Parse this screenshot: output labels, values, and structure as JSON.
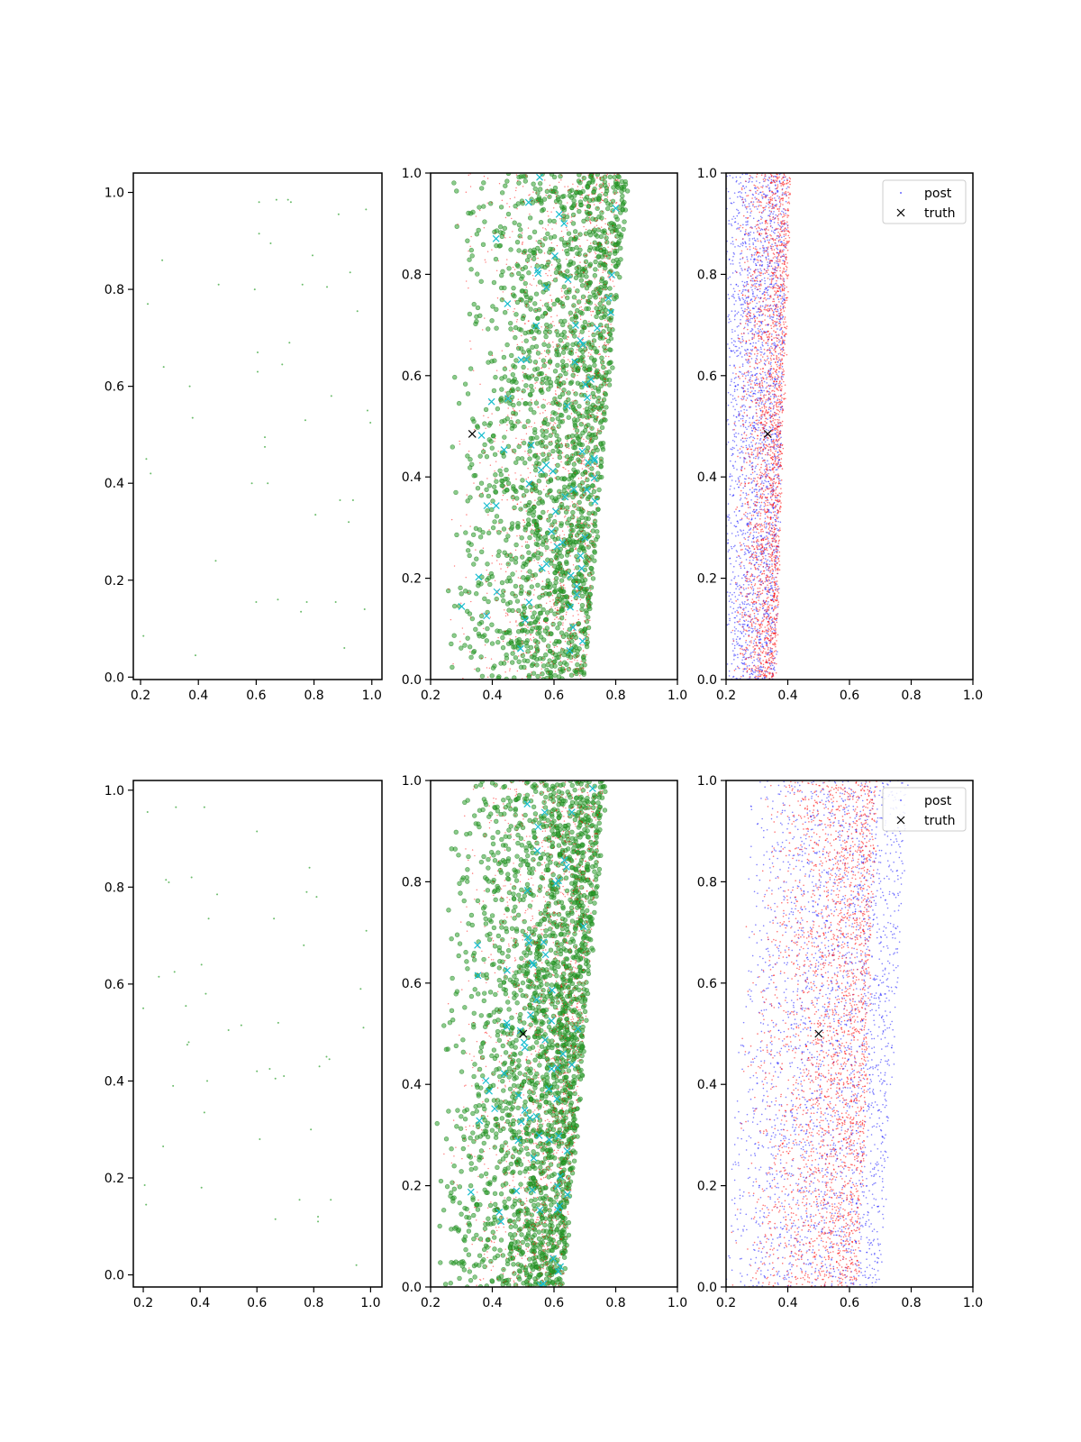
{
  "colors": {
    "prior": "#2ca02c",
    "post_red": "#ff0000",
    "post_blue": "#0000ff",
    "cyan": "#17becf",
    "truth": "#000000",
    "axes": "#000000"
  },
  "legend": {
    "post": "post",
    "truth": "truth"
  },
  "chart_data": [
    {
      "type": "scatter",
      "row": 0,
      "col": 0,
      "xlim": [
        0.175,
        1.035
      ],
      "ylim": [
        -0.005,
        1.04
      ],
      "xticks": [
        "0.2",
        "0.4",
        "0.6",
        "0.8",
        "1.0"
      ],
      "yticks": [
        "0.0",
        "0.2",
        "0.4",
        "0.6",
        "0.8",
        "1.0"
      ],
      "series": [
        {
          "role": "prior",
          "marker": "dot",
          "points": [
            [
              0.21,
              0.085
            ],
            [
              0.22,
              0.45
            ],
            [
              0.225,
              0.77
            ],
            [
              0.235,
              0.42
            ],
            [
              0.275,
              0.86
            ],
            [
              0.28,
              0.64
            ],
            [
              0.37,
              0.6
            ],
            [
              0.38,
              0.535
            ],
            [
              0.39,
              0.045
            ],
            [
              0.46,
              0.24
            ],
            [
              0.47,
              0.81
            ],
            [
              0.585,
              0.4
            ],
            [
              0.595,
              0.8
            ],
            [
              0.6,
              0.155
            ],
            [
              0.605,
              0.67
            ],
            [
              0.605,
              0.63
            ],
            [
              0.61,
              0.98
            ],
            [
              0.61,
              0.915
            ],
            [
              0.63,
              0.495
            ],
            [
              0.63,
              0.475
            ],
            [
              0.64,
              0.4
            ],
            [
              0.65,
              0.895
            ],
            [
              0.67,
              0.985
            ],
            [
              0.675,
              0.16
            ],
            [
              0.69,
              0.645
            ],
            [
              0.71,
              0.985
            ],
            [
              0.715,
              0.69
            ],
            [
              0.72,
              0.98
            ],
            [
              0.755,
              0.135
            ],
            [
              0.76,
              0.81
            ],
            [
              0.77,
              0.53
            ],
            [
              0.775,
              0.155
            ],
            [
              0.795,
              0.87
            ],
            [
              0.805,
              0.335
            ],
            [
              0.845,
              0.805
            ],
            [
              0.86,
              0.58
            ],
            [
              0.875,
              0.155
            ],
            [
              0.885,
              0.955
            ],
            [
              0.89,
              0.365
            ],
            [
              0.905,
              0.06
            ],
            [
              0.92,
              0.32
            ],
            [
              0.925,
              0.835
            ],
            [
              0.935,
              0.365
            ],
            [
              0.95,
              0.755
            ],
            [
              0.975,
              0.14
            ],
            [
              0.98,
              0.965
            ],
            [
              0.985,
              0.55
            ],
            [
              0.995,
              0.525
            ]
          ]
        }
      ]
    },
    {
      "type": "scatter",
      "row": 0,
      "col": 1,
      "xlim": [
        0.2,
        1.0
      ],
      "ylim": [
        0.0,
        1.0
      ],
      "xticks": [
        "0.2",
        "0.4",
        "0.6",
        "0.8",
        "1.0"
      ],
      "yticks": [
        "0.0",
        "0.2",
        "0.4",
        "0.6",
        "0.8",
        "1.0"
      ],
      "series": [
        {
          "role": "samples-green",
          "marker": "circle",
          "count": 1800,
          "band": {
            "left_at_y0": 0.22,
            "left_at_y1": 0.26,
            "right_at_y0": 0.7,
            "right_at_y1": 0.84,
            "skew": 2.2
          }
        },
        {
          "role": "samples-red",
          "marker": "dot",
          "count": 1500,
          "band": {
            "left_at_y0": 0.2,
            "left_at_y1": 0.25,
            "right_at_y0": 0.7,
            "right_at_y1": 0.82,
            "skew": 2.6
          }
        },
        {
          "role": "samples-cyan",
          "marker": "x",
          "count": 70,
          "band": {
            "left_at_y0": 0.26,
            "left_at_y1": 0.3,
            "right_at_y0": 0.7,
            "right_at_y1": 0.82,
            "skew": 2.4
          }
        },
        {
          "role": "truth",
          "marker": "x",
          "points": [
            [
              0.335,
              0.485
            ]
          ]
        }
      ]
    },
    {
      "type": "scatter",
      "row": 0,
      "col": 2,
      "xlim": [
        0.2,
        1.0
      ],
      "ylim": [
        0.0,
        1.0
      ],
      "xticks": [
        "0.2",
        "0.4",
        "0.6",
        "0.8",
        "1.0"
      ],
      "yticks": [
        "0.0",
        "0.2",
        "0.4",
        "0.6",
        "0.8",
        "1.0"
      ],
      "legend": "top-right",
      "series": [
        {
          "role": "post-blue",
          "marker": "dot",
          "count": 2200,
          "band": {
            "left_at_y0": 0.2,
            "left_at_y1": 0.2,
            "right_at_y0": 0.36,
            "right_at_y1": 0.4,
            "skew": 1.3
          }
        },
        {
          "role": "post-red",
          "marker": "dot",
          "count": 2200,
          "band": {
            "left_at_y0": 0.22,
            "left_at_y1": 0.22,
            "right_at_y0": 0.36,
            "right_at_y1": 0.41,
            "skew": 2.2
          }
        },
        {
          "role": "truth",
          "marker": "x",
          "points": [
            [
              0.335,
              0.485
            ]
          ]
        }
      ]
    },
    {
      "type": "scatter",
      "row": 1,
      "col": 0,
      "xlim": [
        0.165,
        1.04
      ],
      "ylim": [
        -0.025,
        1.02
      ],
      "xticks": [
        "0.2",
        "0.4",
        "0.6",
        "0.8",
        "1.0"
      ],
      "yticks": [
        "0.0",
        "0.2",
        "0.4",
        "0.6",
        "0.8",
        "1.0"
      ],
      "series": [
        {
          "role": "prior",
          "marker": "dot",
          "points": [
            [
              0.2,
              0.55
            ],
            [
              0.205,
              0.185
            ],
            [
              0.21,
              0.145
            ],
            [
              0.215,
              0.955
            ],
            [
              0.255,
              0.615
            ],
            [
              0.27,
              0.265
            ],
            [
              0.28,
              0.815
            ],
            [
              0.29,
              0.81
            ],
            [
              0.305,
              0.39
            ],
            [
              0.31,
              0.625
            ],
            [
              0.315,
              0.965
            ],
            [
              0.35,
              0.555
            ],
            [
              0.355,
              0.475
            ],
            [
              0.36,
              0.48
            ],
            [
              0.37,
              0.82
            ],
            [
              0.405,
              0.64
            ],
            [
              0.405,
              0.18
            ],
            [
              0.415,
              0.335
            ],
            [
              0.415,
              0.965
            ],
            [
              0.42,
              0.58
            ],
            [
              0.425,
              0.4
            ],
            [
              0.43,
              0.735
            ],
            [
              0.46,
              0.785
            ],
            [
              0.5,
              0.505
            ],
            [
              0.545,
              0.515
            ],
            [
              0.6,
              0.915
            ],
            [
              0.6,
              0.42
            ],
            [
              0.61,
              0.28
            ],
            [
              0.645,
              0.425
            ],
            [
              0.66,
              0.735
            ],
            [
              0.665,
              0.115
            ],
            [
              0.665,
              0.405
            ],
            [
              0.675,
              0.52
            ],
            [
              0.695,
              0.41
            ],
            [
              0.75,
              0.155
            ],
            [
              0.765,
              0.68
            ],
            [
              0.775,
              0.79
            ],
            [
              0.785,
              0.84
            ],
            [
              0.79,
              0.3
            ],
            [
              0.81,
              0.78
            ],
            [
              0.815,
              0.11
            ],
            [
              0.815,
              0.12
            ],
            [
              0.82,
              0.43
            ],
            [
              0.845,
              0.45
            ],
            [
              0.855,
              0.445
            ],
            [
              0.86,
              0.155
            ],
            [
              0.95,
              0.02
            ],
            [
              0.965,
              0.59
            ],
            [
              0.975,
              0.51
            ],
            [
              0.985,
              0.71
            ]
          ]
        }
      ]
    },
    {
      "type": "scatter",
      "row": 1,
      "col": 1,
      "xlim": [
        0.2,
        1.0
      ],
      "ylim": [
        0.0,
        1.0
      ],
      "xticks": [
        "0.2",
        "0.4",
        "0.6",
        "0.8",
        "1.0"
      ],
      "yticks": [
        "0.0",
        "0.2",
        "0.4",
        "0.6",
        "0.8",
        "1.0"
      ],
      "series": [
        {
          "role": "samples-green",
          "marker": "circle",
          "count": 2200,
          "band": {
            "left_at_y0": 0.2,
            "left_at_y1": 0.24,
            "right_at_y0": 0.63,
            "right_at_y1": 0.77,
            "skew": 2.2
          }
        },
        {
          "role": "samples-red",
          "marker": "dot",
          "count": 1500,
          "band": {
            "left_at_y0": 0.2,
            "left_at_y1": 0.22,
            "right_at_y0": 0.63,
            "right_at_y1": 0.76,
            "skew": 2.6
          }
        },
        {
          "role": "samples-cyan",
          "marker": "x",
          "count": 70,
          "band": {
            "left_at_y0": 0.25,
            "left_at_y1": 0.28,
            "right_at_y0": 0.63,
            "right_at_y1": 0.74,
            "skew": 2.4
          }
        },
        {
          "role": "truth",
          "marker": "x",
          "points": [
            [
              0.5,
              0.5
            ]
          ]
        }
      ]
    },
    {
      "type": "scatter",
      "row": 1,
      "col": 2,
      "xlim": [
        0.2,
        1.0
      ],
      "ylim": [
        0.0,
        1.0
      ],
      "xticks": [
        "0.2",
        "0.4",
        "0.6",
        "0.8",
        "1.0"
      ],
      "yticks": [
        "0.0",
        "0.2",
        "0.4",
        "0.6",
        "0.8",
        "1.0"
      ],
      "legend": "top-right",
      "series": [
        {
          "role": "post-blue",
          "marker": "dot",
          "count": 2600,
          "band": {
            "left_at_y0": 0.2,
            "left_at_y1": 0.28,
            "right_at_y0": 0.7,
            "right_at_y1": 0.79,
            "skew": 1.4
          }
        },
        {
          "role": "post-red",
          "marker": "dot",
          "count": 2600,
          "band": {
            "left_at_y0": 0.2,
            "left_at_y1": 0.27,
            "right_at_y0": 0.63,
            "right_at_y1": 0.69,
            "skew": 2.3
          }
        },
        {
          "role": "truth",
          "marker": "x",
          "points": [
            [
              0.5,
              0.5
            ]
          ]
        }
      ]
    }
  ]
}
